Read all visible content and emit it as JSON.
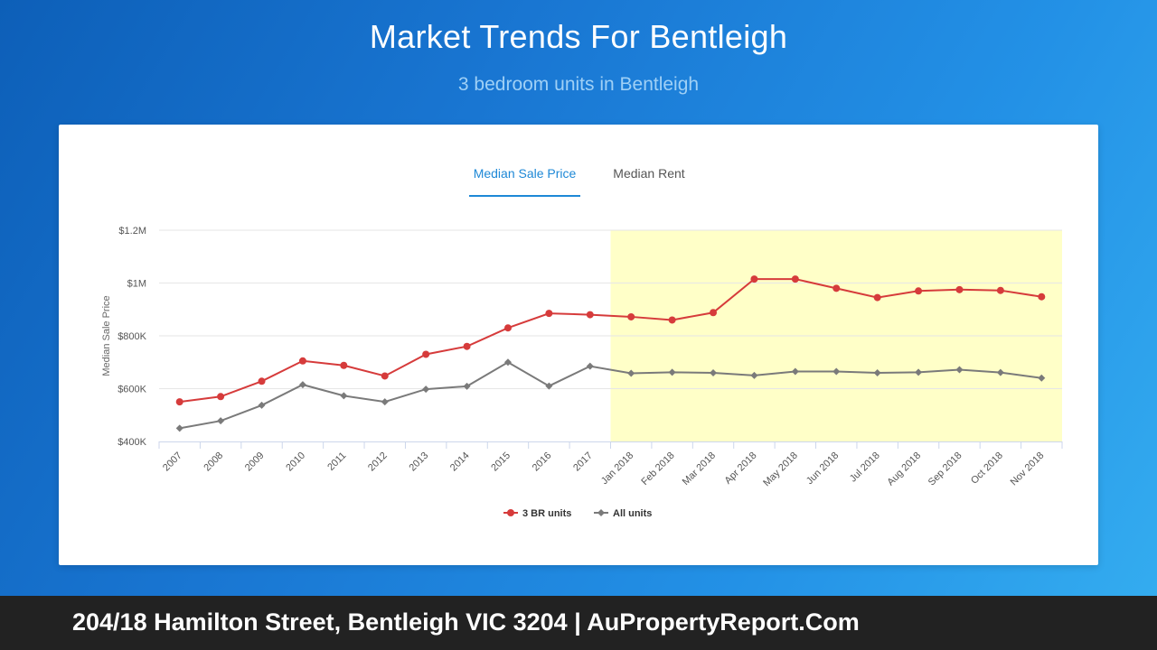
{
  "page": {
    "title": "Market Trends For Bentleigh",
    "subtitle": "3 bedroom units in Bentleigh"
  },
  "tabs": [
    {
      "label": "Median Sale Price",
      "active": true
    },
    {
      "label": "Median Rent",
      "active": false
    }
  ],
  "footer": {
    "text": "204/18 Hamilton Street, Bentleigh VIC 3204 | AuPropertyReport.Com"
  },
  "chart_data": {
    "type": "line",
    "title": "",
    "ylabel": "Median Sale Price",
    "xlabel": "",
    "ylim": [
      400000,
      1200000
    ],
    "y_ticks": [
      {
        "value": 400000,
        "label": "$400K"
      },
      {
        "value": 600000,
        "label": "$600K"
      },
      {
        "value": 800000,
        "label": "$800K"
      },
      {
        "value": 1000000,
        "label": "$1M"
      },
      {
        "value": 1200000,
        "label": "$1.2M"
      }
    ],
    "categories": [
      "2007",
      "2008",
      "2009",
      "2010",
      "2011",
      "2012",
      "2013",
      "2014",
      "2015",
      "2016",
      "2017",
      "Jan 2018",
      "Feb 2018",
      "Mar 2018",
      "Apr 2018",
      "May 2018",
      "Jun 2018",
      "Jul 2018",
      "Aug 2018",
      "Sep 2018",
      "Oct 2018",
      "Nov 2018"
    ],
    "highlight_range": [
      "Jan 2018",
      "Nov 2018"
    ],
    "highlight_color": "#ffffc8",
    "grid": true,
    "legend_position": "bottom",
    "series": [
      {
        "name": "3 BR units",
        "color": "#d63b3b",
        "marker": "circle",
        "values": [
          550000,
          570000,
          628000,
          705000,
          688000,
          648000,
          730000,
          760000,
          830000,
          885000,
          880000,
          872000,
          860000,
          888000,
          1015000,
          1015000,
          980000,
          945000,
          970000,
          975000,
          972000,
          948000
        ]
      },
      {
        "name": "All units",
        "color": "#7a7a7a",
        "marker": "diamond",
        "values": [
          450000,
          478000,
          537000,
          615000,
          573000,
          550000,
          598000,
          609000,
          700000,
          610000,
          685000,
          658000,
          662000,
          660000,
          650000,
          665000,
          665000,
          660000,
          662000,
          672000,
          661000,
          640000
        ]
      }
    ]
  }
}
